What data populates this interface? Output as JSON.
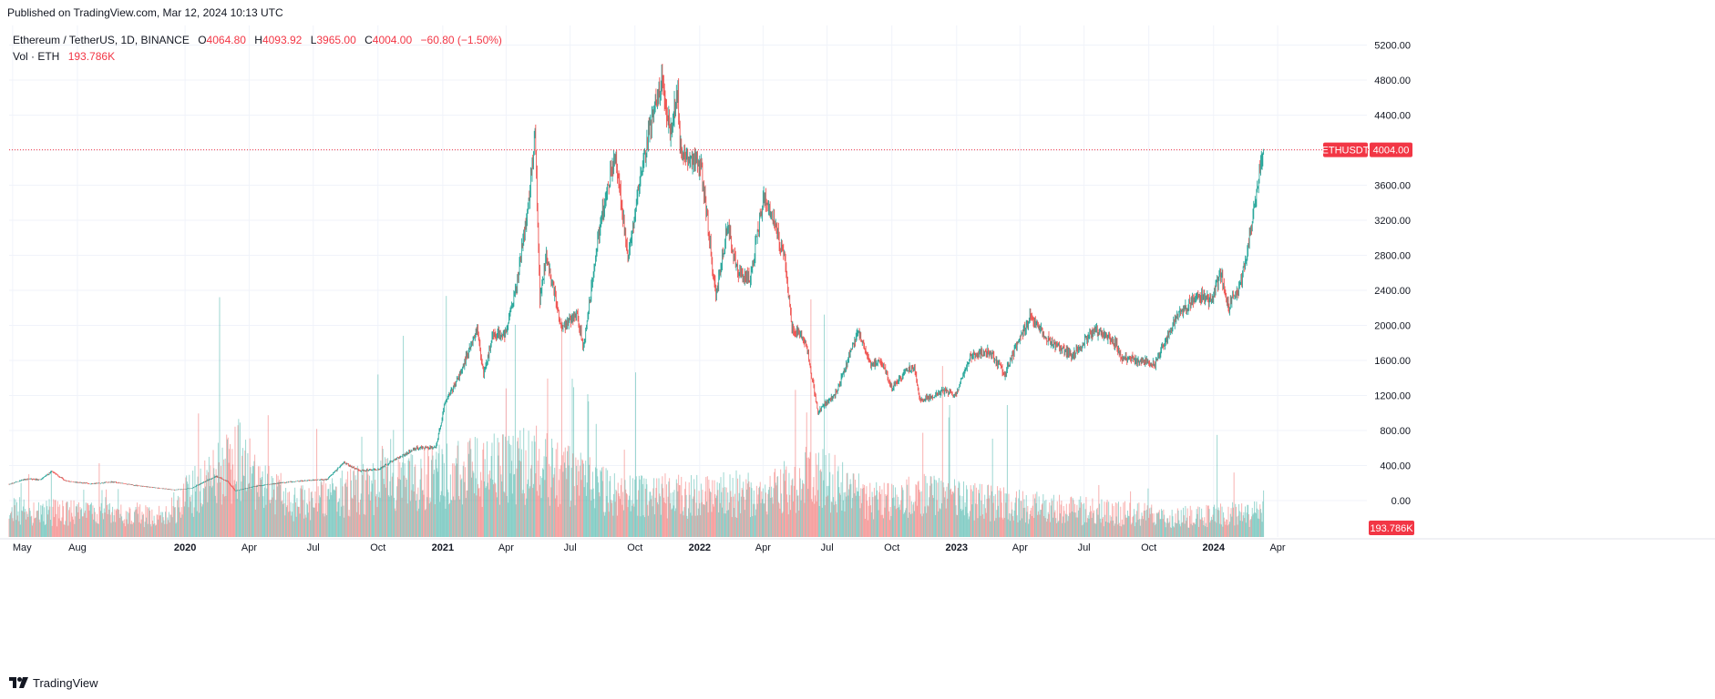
{
  "published_text": "Published on TradingView.com, Mar 12, 2024 10:13 UTC",
  "legend": {
    "symbol": "Ethereum / TetherUS, 1D, BINANCE",
    "o_label": "O",
    "o_value": "4064.80",
    "h_label": "H",
    "h_value": "4093.92",
    "l_label": "L",
    "l_value": "3965.00",
    "c_label": "C",
    "c_value": "4004.00",
    "change": "−60.80 (−1.50%)",
    "vol_label": "Vol · ETH",
    "vol_value": "193.786K"
  },
  "footer": {
    "brand": "TradingView",
    "logo_icon": "tradingview-logo-icon"
  },
  "colors": {
    "up": "#26a69a",
    "down": "#ef5350",
    "grid": "#f0f3fa",
    "badge": "#f23645",
    "price_line": "#f23645"
  },
  "chart_data": {
    "type": "candlestick",
    "symbol": "ETHUSDT",
    "interval": "1D",
    "exchange": "BINANCE",
    "last_price": 4004.0,
    "last_price_label": "4004.00",
    "symbol_badge": "ETHUSDT",
    "volume_last_label": "193.786K",
    "y_ticks": [
      0,
      400,
      800,
      1200,
      1600,
      2000,
      2400,
      2800,
      3200,
      3600,
      4000,
      4400,
      4800,
      5200
    ],
    "y_tick_labels": [
      "0.00",
      "400.00",
      "800.00",
      "1200.00",
      "1600.00",
      "2000.00",
      "2400.00",
      "2800.00",
      "3200.00",
      "3600.00",
      "4000.00",
      "4400.00",
      "4800.00",
      "5200.00"
    ],
    "x_ticks": [
      {
        "date": "2019-05-01",
        "label": "May",
        "bold": false
      },
      {
        "date": "2019-08-01",
        "label": "Aug",
        "bold": false
      },
      {
        "date": "2020-01-01",
        "label": "2020",
        "bold": true
      },
      {
        "date": "2020-04-01",
        "label": "Apr",
        "bold": false
      },
      {
        "date": "2020-07-01",
        "label": "Jul",
        "bold": false
      },
      {
        "date": "2020-10-01",
        "label": "Oct",
        "bold": false
      },
      {
        "date": "2021-01-01",
        "label": "2021",
        "bold": true
      },
      {
        "date": "2021-04-01",
        "label": "Apr",
        "bold": false
      },
      {
        "date": "2021-07-01",
        "label": "Jul",
        "bold": false
      },
      {
        "date": "2021-10-01",
        "label": "Oct",
        "bold": false
      },
      {
        "date": "2022-01-01",
        "label": "2022",
        "bold": true
      },
      {
        "date": "2022-04-01",
        "label": "Apr",
        "bold": false
      },
      {
        "date": "2022-07-01",
        "label": "Jul",
        "bold": false
      },
      {
        "date": "2022-10-01",
        "label": "Oct",
        "bold": false
      },
      {
        "date": "2023-01-01",
        "label": "2023",
        "bold": true
      },
      {
        "date": "2023-04-01",
        "label": "Apr",
        "bold": false
      },
      {
        "date": "2023-07-01",
        "label": "Jul",
        "bold": false
      },
      {
        "date": "2023-10-01",
        "label": "Oct",
        "bold": false
      },
      {
        "date": "2024-01-01",
        "label": "2024",
        "bold": true
      },
      {
        "date": "2024-04-01",
        "label": "Apr",
        "bold": false
      }
    ],
    "price_path": [
      [
        "2019-04-15",
        160
      ],
      [
        "2019-05-20",
        245
      ],
      [
        "2019-06-10",
        240
      ],
      [
        "2019-06-26",
        335
      ],
      [
        "2019-07-15",
        225
      ],
      [
        "2019-08-20",
        190
      ],
      [
        "2019-09-20",
        215
      ],
      [
        "2019-10-20",
        175
      ],
      [
        "2019-12-17",
        122
      ],
      [
        "2020-01-10",
        140
      ],
      [
        "2020-02-14",
        280
      ],
      [
        "2020-03-01",
        220
      ],
      [
        "2020-03-12",
        112
      ],
      [
        "2020-04-15",
        170
      ],
      [
        "2020-05-20",
        205
      ],
      [
        "2020-06-20",
        230
      ],
      [
        "2020-07-20",
        240
      ],
      [
        "2020-08-14",
        435
      ],
      [
        "2020-09-05",
        340
      ],
      [
        "2020-10-01",
        355
      ],
      [
        "2020-11-24",
        600
      ],
      [
        "2020-12-22",
        605
      ],
      [
        "2021-01-04",
        1100
      ],
      [
        "2021-01-20",
        1350
      ],
      [
        "2021-02-19",
        1960
      ],
      [
        "2021-02-28",
        1420
      ],
      [
        "2021-03-13",
        1900
      ],
      [
        "2021-03-31",
        1900
      ],
      [
        "2021-04-16",
        2450
      ],
      [
        "2021-05-03",
        3400
      ],
      [
        "2021-05-12",
        4200
      ],
      [
        "2021-05-19",
        2300
      ],
      [
        "2021-05-28",
        2800
      ],
      [
        "2021-06-20",
        1950
      ],
      [
        "2021-07-10",
        2150
      ],
      [
        "2021-07-20",
        1750
      ],
      [
        "2021-08-13",
        3200
      ],
      [
        "2021-09-03",
        3950
      ],
      [
        "2021-09-21",
        2750
      ],
      [
        "2021-10-06",
        3550
      ],
      [
        "2021-10-21",
        4200
      ],
      [
        "2021-11-09",
        4800
      ],
      [
        "2021-11-20",
        4200
      ],
      [
        "2021-12-01",
        4700
      ],
      [
        "2021-12-04",
        4000
      ],
      [
        "2021-12-20",
        3900
      ],
      [
        "2022-01-03",
        3800
      ],
      [
        "2022-01-24",
        2350
      ],
      [
        "2022-02-10",
        3150
      ],
      [
        "2022-02-24",
        2600
      ],
      [
        "2022-03-14",
        2550
      ],
      [
        "2022-04-02",
        3500
      ],
      [
        "2022-05-01",
        2800
      ],
      [
        "2022-05-12",
        2000
      ],
      [
        "2022-06-01",
        1800
      ],
      [
        "2022-06-18",
        1000
      ],
      [
        "2022-07-15",
        1250
      ],
      [
        "2022-08-14",
        1950
      ],
      [
        "2022-09-01",
        1550
      ],
      [
        "2022-09-15",
        1600
      ],
      [
        "2022-10-01",
        1300
      ],
      [
        "2022-11-01",
        1550
      ],
      [
        "2022-11-10",
        1150
      ],
      [
        "2022-12-15",
        1250
      ],
      [
        "2022-12-31",
        1200
      ],
      [
        "2023-01-20",
        1650
      ],
      [
        "2023-02-15",
        1700
      ],
      [
        "2023-03-10",
        1450
      ],
      [
        "2023-04-15",
        2100
      ],
      [
        "2023-05-15",
        1800
      ],
      [
        "2023-06-15",
        1650
      ],
      [
        "2023-07-15",
        1950
      ],
      [
        "2023-08-15",
        1800
      ],
      [
        "2023-08-20",
        1650
      ],
      [
        "2023-09-15",
        1600
      ],
      [
        "2023-10-10",
        1560
      ],
      [
        "2023-11-10",
        2100
      ],
      [
        "2023-12-10",
        2350
      ],
      [
        "2023-12-28",
        2250
      ],
      [
        "2024-01-11",
        2600
      ],
      [
        "2024-01-22",
        2200
      ],
      [
        "2024-02-08",
        2450
      ],
      [
        "2024-02-20",
        2950
      ],
      [
        "2024-02-27",
        3300
      ],
      [
        "2024-03-05",
        3700
      ],
      [
        "2024-03-11",
        4050
      ],
      [
        "2024-03-12",
        4004
      ]
    ],
    "volume_path": [
      [
        "2019-04-15",
        90
      ],
      [
        "2019-12-01",
        70
      ],
      [
        "2020-03-12",
        270
      ],
      [
        "2020-06-01",
        110
      ],
      [
        "2020-09-01",
        160
      ],
      [
        "2021-01-05",
        210
      ],
      [
        "2021-05-19",
        250
      ],
      [
        "2021-09-01",
        140
      ],
      [
        "2022-01-24",
        140
      ],
      [
        "2022-05-12",
        170
      ],
      [
        "2022-06-18",
        210
      ],
      [
        "2022-09-01",
        120
      ],
      [
        "2022-11-10",
        140
      ],
      [
        "2023-03-10",
        110
      ],
      [
        "2023-08-17",
        80
      ],
      [
        "2023-11-10",
        70
      ],
      [
        "2024-03-12",
        80
      ]
    ],
    "volume_axis_top_value": 1200,
    "grid": true
  }
}
